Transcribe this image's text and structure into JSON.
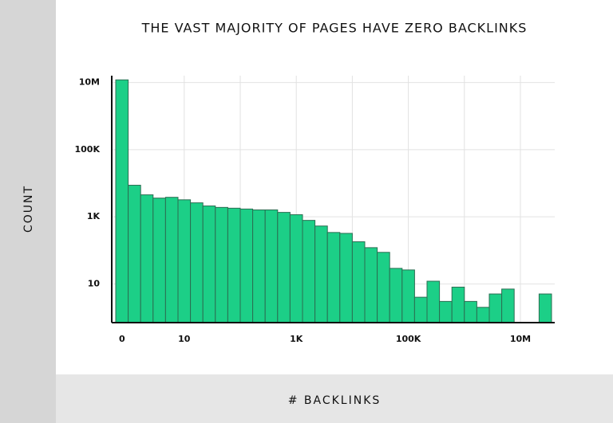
{
  "chart_data": {
    "type": "bar",
    "title": "THE VAST MAJORITY OF PAGES HAVE ZERO BACKLINKS",
    "x_label": "# BACKLINKS",
    "y_label": "COUNT",
    "categories": [
      "0",
      null,
      null,
      null,
      null,
      "10",
      null,
      null,
      null,
      null,
      null,
      null,
      null,
      null,
      "1K",
      null,
      null,
      null,
      null,
      null,
      null,
      null,
      null,
      "100K",
      null,
      null,
      null,
      null,
      null,
      null,
      null,
      null,
      "10M",
      null,
      null
    ],
    "values": [
      12000000,
      8700,
      4500,
      3600,
      3800,
      3200,
      2600,
      2100,
      1900,
      1800,
      1700,
      1600,
      1600,
      1350,
      1150,
      780,
      530,
      340,
      320,
      180,
      120,
      87,
      29,
      26,
      4,
      12,
      3,
      8,
      3,
      2,
      5,
      7,
      null,
      null,
      5
    ],
    "color": "#1ccf87",
    "log_y": true,
    "ylim": [
      0.7,
      16000000
    ],
    "yticks": [
      {
        "value": 10000000,
        "label": "10M"
      },
      {
        "value": 100000,
        "label": "100K"
      },
      {
        "value": 1000,
        "label": "1K"
      },
      10
    ],
    "grid": true
  }
}
